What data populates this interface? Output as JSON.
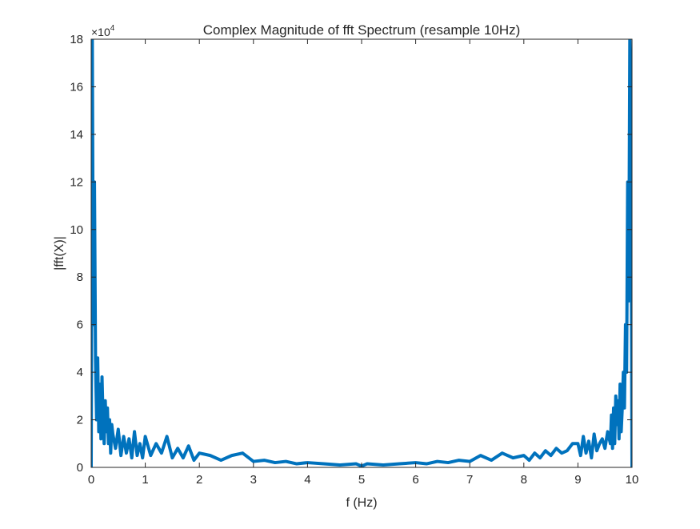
{
  "chart_data": {
    "type": "line",
    "title": "Complex Magnitude of fft Spectrum (resample 10Hz)",
    "xlabel": "f (Hz)",
    "ylabel": "|fft(X)|",
    "y_exponent_label": "×10",
    "y_exponent_power": "4",
    "xlim": [
      0,
      10
    ],
    "ylim": [
      0,
      18
    ],
    "xticks": [
      "0",
      "1",
      "2",
      "3",
      "4",
      "5",
      "6",
      "7",
      "8",
      "9",
      "10"
    ],
    "yticks": [
      "0",
      "2",
      "4",
      "6",
      "8",
      "10",
      "12",
      "14",
      "16",
      "18"
    ],
    "grid": false,
    "line_color": "#0072BD",
    "series": [
      {
        "x": [
          0,
          0.02,
          0.04,
          0.06,
          0.08,
          0.1,
          0.12,
          0.14,
          0.16,
          0.18,
          0.2,
          0.22,
          0.24,
          0.26,
          0.28,
          0.3,
          0.32,
          0.34,
          0.36,
          0.38,
          0.4,
          0.45,
          0.5,
          0.55,
          0.6,
          0.65,
          0.7,
          0.75,
          0.8,
          0.85,
          0.9,
          0.95,
          1.0,
          1.1,
          1.2,
          1.3,
          1.4,
          1.5,
          1.6,
          1.7,
          1.8,
          1.9,
          2.0,
          2.2,
          2.4,
          2.6,
          2.8,
          3.0,
          3.2,
          3.4,
          3.6,
          3.8,
          4.0,
          4.3,
          4.6,
          4.9,
          5.0,
          5.1,
          5.4,
          5.7,
          6.0,
          6.2,
          6.4,
          6.6,
          6.8,
          7.0,
          7.2,
          7.4,
          7.6,
          7.8,
          8.0,
          8.1,
          8.2,
          8.3,
          8.4,
          8.5,
          8.6,
          8.7,
          8.8,
          8.9,
          9.0,
          9.05,
          9.1,
          9.15,
          9.2,
          9.25,
          9.3,
          9.35,
          9.4,
          9.45,
          9.5,
          9.55,
          9.6,
          9.62,
          9.64,
          9.66,
          9.68,
          9.7,
          9.72,
          9.74,
          9.76,
          9.78,
          9.8,
          9.82,
          9.84,
          9.86,
          9.88,
          9.9,
          9.92,
          9.94,
          9.96,
          9.98,
          10.0
        ],
        "y": [
          0,
          18,
          6,
          12,
          4.5,
          2,
          4.6,
          1.5,
          3.5,
          1.2,
          3.8,
          2.0,
          1.0,
          2.8,
          1.5,
          2.5,
          1.0,
          2.0,
          0.6,
          1.8,
          1.4,
          0.8,
          1.6,
          0.5,
          1.3,
          0.6,
          1.2,
          0.4,
          1.5,
          0.5,
          1.0,
          0.4,
          1.3,
          0.5,
          1.0,
          0.6,
          1.3,
          0.4,
          0.8,
          0.4,
          0.9,
          0.3,
          0.6,
          0.5,
          0.3,
          0.5,
          0.6,
          0.25,
          0.3,
          0.2,
          0.25,
          0.15,
          0.2,
          0.15,
          0.1,
          0.15,
          0.05,
          0.15,
          0.1,
          0.15,
          0.2,
          0.15,
          0.25,
          0.2,
          0.3,
          0.25,
          0.5,
          0.3,
          0.6,
          0.4,
          0.5,
          0.3,
          0.6,
          0.4,
          0.7,
          0.5,
          0.8,
          0.6,
          0.7,
          1.0,
          1.0,
          0.5,
          1.3,
          0.6,
          1.1,
          0.4,
          1.4,
          0.7,
          1.0,
          1.2,
          0.8,
          1.5,
          1.0,
          2.2,
          0.8,
          2.5,
          1.0,
          3.0,
          1.8,
          2.8,
          1.2,
          3.5,
          1.5,
          2.5,
          4.0,
          2.5,
          6.0,
          4.0,
          12.0,
          7.0,
          18.0,
          15.0,
          0
        ]
      }
    ]
  }
}
